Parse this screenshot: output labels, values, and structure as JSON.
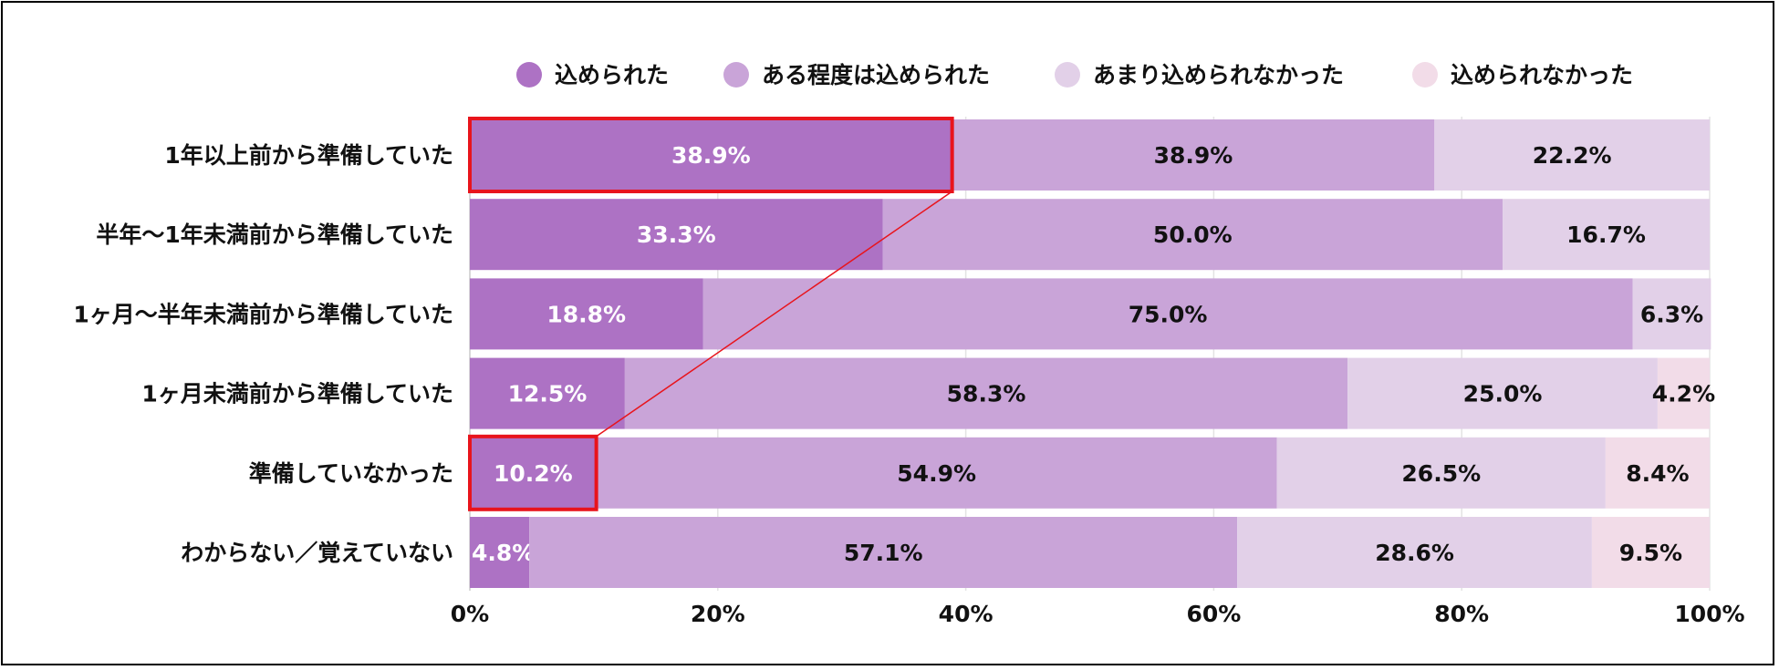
{
  "chart_data": {
    "type": "bar",
    "orientation": "horizontal",
    "stacked": true,
    "categories": [
      "1年以上前から準備していた",
      "半年～1年未満前から準備していた",
      "1ヶ月～半年未満前から準備していた",
      "1ヶ月未満前から準備していた",
      "準備していなかった",
      "わからない／覚えていない"
    ],
    "series": [
      {
        "name": "込められた",
        "color": "#ad72c4",
        "label_color": "#ffffff",
        "values": [
          38.9,
          33.3,
          18.8,
          12.5,
          10.2,
          4.8
        ]
      },
      {
        "name": "ある程度は込められた",
        "color": "#c9a4d8",
        "label_color": "#111111",
        "values": [
          38.9,
          50.0,
          75.0,
          58.3,
          54.9,
          57.1
        ]
      },
      {
        "name": "あまり込められなかった",
        "color": "#e2d0e8",
        "label_color": "#111111",
        "values": [
          22.2,
          16.7,
          6.3,
          25.0,
          26.5,
          28.6
        ]
      },
      {
        "name": "込められなかった",
        "color": "#f2dce8",
        "label_color": "#111111",
        "values": [
          0,
          0,
          0,
          4.2,
          8.4,
          9.5
        ]
      }
    ],
    "data_labels": [
      [
        "38.9%",
        "38.9%",
        "22.2%",
        ""
      ],
      [
        "33.3%",
        "50.0%",
        "16.7%",
        ""
      ],
      [
        "18.8%",
        "75.0%",
        "6.3%",
        ""
      ],
      [
        "12.5%",
        "58.3%",
        "25.0%",
        "4.2%"
      ],
      [
        "10.2%",
        "54.9%",
        "26.5%",
        "8.4%"
      ],
      [
        "4.8%",
        "57.1%",
        "28.6%",
        "9.5%"
      ]
    ],
    "xlim": [
      0,
      100
    ],
    "xticks": [
      "0%",
      "20%",
      "40%",
      "60%",
      "80%",
      "100%"
    ],
    "grid": true,
    "legend_position": "top",
    "highlight": {
      "color": "#e8141c",
      "boxes": [
        {
          "category_index": 0,
          "series_index": 0
        },
        {
          "category_index": 4,
          "series_index": 0
        }
      ]
    }
  }
}
